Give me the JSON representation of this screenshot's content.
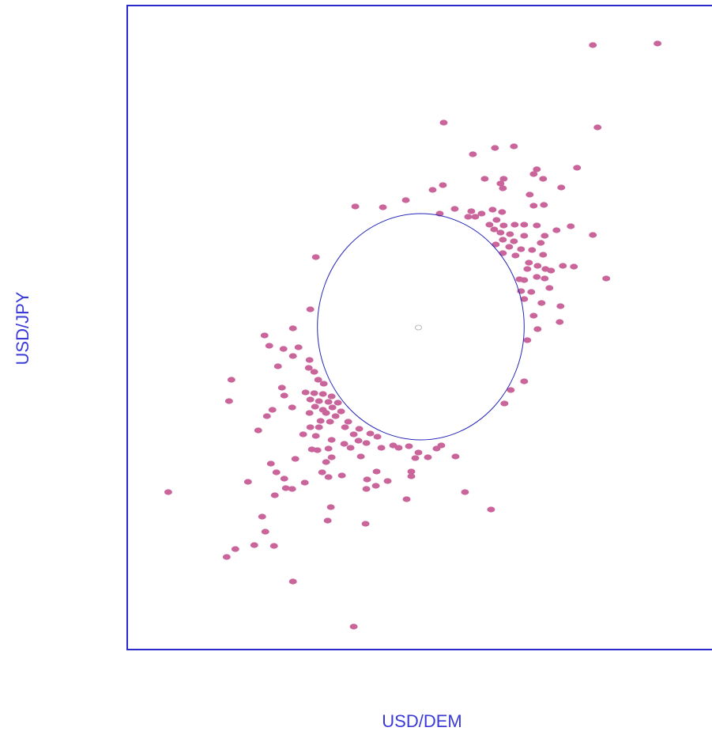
{
  "chart_data": {
    "type": "scatter",
    "x_label": "USD/DEM",
    "y_label": "USD/JPY",
    "xlim": [
      0,
      740
    ],
    "ylim": [
      0,
      814
    ],
    "x": [
      672,
      590,
      401,
      596,
      466,
      490,
      438,
      570,
      519,
      515,
      453,
      477,
      527,
      473,
      476,
      400,
      387,
      550,
      510,
      353,
      289,
      324,
      515,
      528,
      396,
      415,
      436,
      449,
      463,
      475,
      432,
      441,
      468,
      459,
      477,
      491,
      503,
      519,
      562,
      544,
      465,
      473,
      485,
      503,
      529,
      590,
      476,
      490,
      524,
      467,
      484,
      499,
      513,
      476,
      492,
      527,
      239,
      509,
      520,
      552,
      566,
      530,
      537,
      507,
      497,
      503,
      519,
      529,
      607,
      535,
      512,
      499,
      503,
      525,
      549,
      232,
      515,
      548,
      520,
      210,
      174,
      180,
      198,
      217,
      507,
      210,
      231,
      191,
      230,
      237,
      132,
      242,
      503,
      196,
      249,
      486,
      226,
      237,
      248,
      199,
      259,
      129,
      232,
      243,
      255,
      267,
      478,
      209,
      184,
      238,
      248,
      260,
      271,
      231,
      252,
      264,
      177,
      245,
      257,
      280,
      232,
      243,
      276,
      294,
      166,
      223,
      239,
      287,
      308,
      317,
      259,
      293,
      275,
      303,
      337,
      357,
      398,
      234,
      241,
      255,
      283,
      322,
      344,
      369,
      392,
      259,
      296,
      365,
      381,
      416,
      213,
      182,
      252,
      189,
      247,
      272,
      316,
      360,
      360,
      199,
      255,
      304,
      330,
      153,
      225,
      201,
      209,
      303,
      315,
      52,
      187,
      428,
      354,
      258,
      461,
      171,
      254,
      302,
      175,
      161,
      186,
      137,
      126,
      210,
      287
    ],
    "series": [
      {
        "color": "#c9659a",
        "values": [
          766,
          764,
          666,
          660,
          634,
          636,
          626,
          609,
          607,
          601,
          595,
          595,
          595,
          589,
          583,
          587,
          581,
          584,
          575,
          568,
          560,
          559,
          561,
          562,
          551,
          557,
          554,
          551,
          556,
          553,
          547,
          547,
          543,
          537,
          536,
          537,
          537,
          536,
          535,
          530,
          531,
          527,
          525,
          523,
          523,
          524,
          518,
          516,
          514,
          512,
          509,
          506,
          505,
          501,
          498,
          499,
          496,
          489,
          485,
          485,
          484,
          481,
          479,
          481,
          468,
          467,
          471,
          469,
          469,
          457,
          452,
          453,
          443,
          438,
          434,
          430,
          422,
          414,
          405,
          406,
          397,
          384,
          380,
          382,
          391,
          371,
          366,
          358,
          356,
          351,
          341,
          341,
          339,
          331,
          336,
          328,
          325,
          324,
          323,
          321,
          320,
          314,
          316,
          314,
          313,
          312,
          311,
          306,
          303,
          307,
          303,
          306,
          301,
          299,
          299,
          295,
          295,
          289,
          288,
          288,
          281,
          281,
          281,
          279,
          277,
          272,
          270,
          272,
          273,
          269,
          265,
          264,
          260,
          261,
          258,
          257,
          258,
          253,
          252,
          254,
          255,
          255,
          255,
          249,
          254,
          243,
          244,
          242,
          243,
          244,
          241,
          235,
          237,
          224,
          224,
          220,
          225,
          225,
          219,
          216,
          218,
          215,
          213,
          212,
          211,
          204,
          203,
          203,
          207,
          199,
          195,
          199,
          190,
          180,
          177,
          168,
          163,
          159,
          149,
          132,
          131,
          127,
          117,
          86,
          29
        ]
      }
    ],
    "ellipse": {
      "cx": 372,
      "cy": 408,
      "rx": 131,
      "ry": 143,
      "color": "#2626b8"
    },
    "center_marker": {
      "x": 369,
      "y": 407
    },
    "axis_color": "#2a2acc"
  }
}
